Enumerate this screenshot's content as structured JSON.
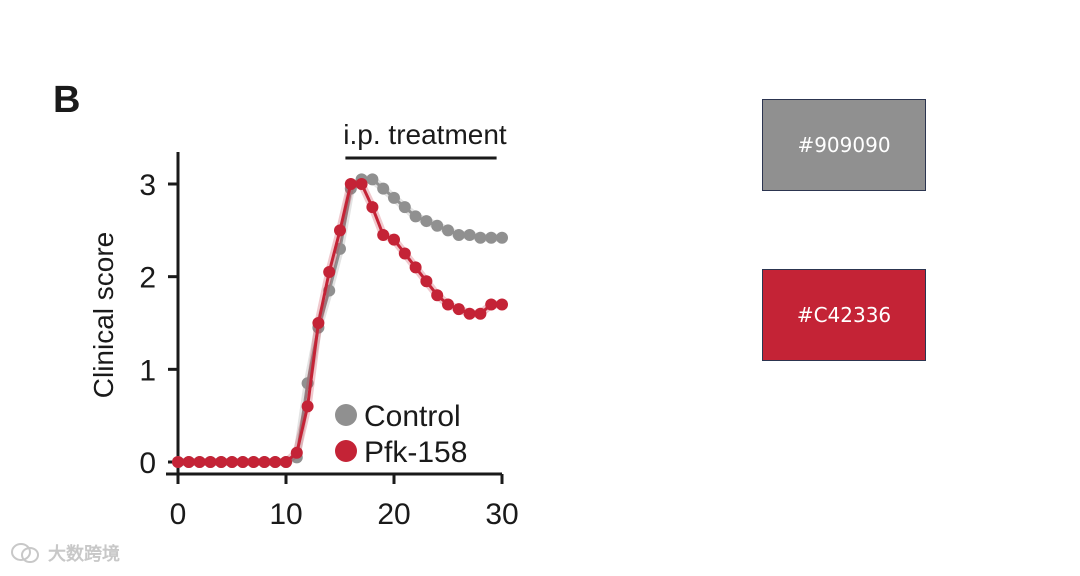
{
  "panel_label": "B",
  "chart_data": {
    "type": "line",
    "ylabel": "Clinical score",
    "xlim": [
      0,
      30
    ],
    "ylim": [
      0,
      3.3
    ],
    "x_ticks": [
      0,
      10,
      20,
      30
    ],
    "y_ticks": [
      0,
      1,
      2,
      3
    ],
    "annotation": {
      "text": "i.p. treatment",
      "x_start": 15.5,
      "x_end": 29.5
    },
    "legend": {
      "position": "bottom-right",
      "entries": [
        "Control",
        "Pfk-158"
      ]
    },
    "grid": false,
    "x": [
      0,
      1,
      2,
      3,
      4,
      5,
      6,
      7,
      8,
      9,
      10,
      11,
      12,
      13,
      14,
      15,
      16,
      17,
      18,
      19,
      20,
      21,
      22,
      23,
      24,
      25,
      26,
      27,
      28,
      29,
      30
    ],
    "series": [
      {
        "name": "Control",
        "color": "#909090",
        "values": [
          0,
          0,
          0,
          0,
          0,
          0,
          0,
          0,
          0,
          0,
          0,
          0.05,
          0.85,
          1.45,
          1.85,
          2.3,
          2.95,
          3.05,
          3.05,
          2.95,
          2.85,
          2.75,
          2.65,
          2.6,
          2.55,
          2.5,
          2.45,
          2.45,
          2.42,
          2.42,
          2.42
        ]
      },
      {
        "name": "Pfk-158",
        "color": "#C42336",
        "values": [
          0,
          0,
          0,
          0,
          0,
          0,
          0,
          0,
          0,
          0,
          0,
          0.1,
          0.6,
          1.5,
          2.05,
          2.5,
          3.0,
          3.0,
          2.75,
          2.45,
          2.4,
          2.25,
          2.1,
          1.95,
          1.8,
          1.7,
          1.65,
          1.6,
          1.6,
          1.7,
          1.7
        ]
      }
    ]
  },
  "swatches": [
    {
      "label": "#909090",
      "color": "#909090"
    },
    {
      "label": "#C42336",
      "color": "#C42336"
    }
  ],
  "watermark": {
    "text": "大数跨境",
    "icon": "wechat-logo-icon"
  }
}
